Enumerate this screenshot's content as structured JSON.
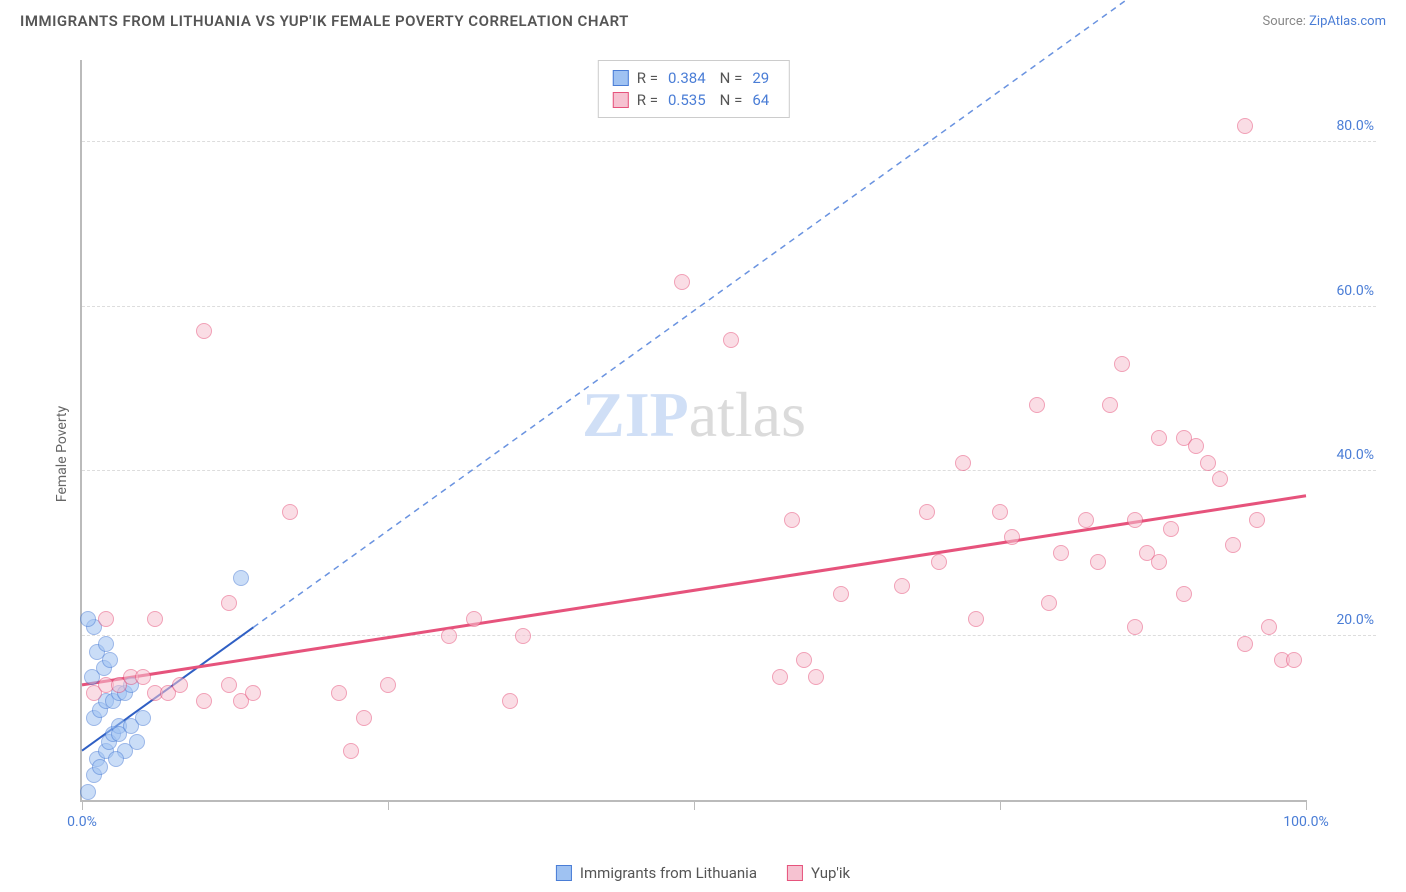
{
  "title": "IMMIGRANTS FROM LITHUANIA VS YUP'IK FEMALE POVERTY CORRELATION CHART",
  "source_prefix": "Source: ",
  "source_name": "ZipAtlas.com",
  "y_axis_label": "Female Poverty",
  "watermark": {
    "z": "Z",
    "i": "I",
    "p": "P",
    "rest": "atlas"
  },
  "chart": {
    "type": "scatter",
    "xlim": [
      0,
      100
    ],
    "ylim": [
      0,
      90
    ],
    "y_ticks": [
      20,
      40,
      60,
      80
    ],
    "y_tick_labels": [
      "20.0%",
      "40.0%",
      "60.0%",
      "80.0%"
    ],
    "x_ticks": [
      0,
      25,
      50,
      75,
      100
    ],
    "x_tick_labels_shown": {
      "0": "0.0%",
      "100": "100.0%"
    },
    "background_color": "#ffffff",
    "grid_color": "#dddddd",
    "axis_color": "#bbbbbb",
    "tick_label_color": "#4a7dd6",
    "point_radius": 8,
    "point_opacity": 0.55,
    "series": [
      {
        "name": "Immigrants from Lithuania",
        "color_fill": "#9fc2f2",
        "color_stroke": "#4a7dd6",
        "R": "0.384",
        "N": "29",
        "trend": {
          "x1": 0,
          "y1": 6,
          "x2": 14,
          "y2": 21,
          "extend_x2": 100,
          "extend_y2": 113,
          "solid_color": "#2f5fc4",
          "dash_color": "#6a93e0",
          "width": 2
        },
        "points": [
          [
            0.5,
            1
          ],
          [
            1,
            3
          ],
          [
            1.2,
            5
          ],
          [
            1.5,
            4
          ],
          [
            2,
            6
          ],
          [
            2.2,
            7
          ],
          [
            2.5,
            8
          ],
          [
            3,
            9
          ],
          [
            1,
            10
          ],
          [
            1.5,
            11
          ],
          [
            2,
            12
          ],
          [
            2.5,
            12
          ],
          [
            3,
            13
          ],
          [
            3.5,
            13
          ],
          [
            4,
            14
          ],
          [
            0.8,
            15
          ],
          [
            1.8,
            16
          ],
          [
            2.3,
            17
          ],
          [
            1.2,
            18
          ],
          [
            2,
            19
          ],
          [
            1,
            21
          ],
          [
            0.5,
            22
          ],
          [
            3,
            8
          ],
          [
            4,
            9
          ],
          [
            5,
            10
          ],
          [
            4.5,
            7
          ],
          [
            3.5,
            6
          ],
          [
            2.8,
            5
          ],
          [
            13,
            27
          ]
        ]
      },
      {
        "name": "Yup'ik",
        "color_fill": "#f6c2d1",
        "color_stroke": "#e6537c",
        "R": "0.535",
        "N": "64",
        "trend": {
          "x1": 0,
          "y1": 14,
          "x2": 100,
          "y2": 37,
          "solid_color": "#e6537c",
          "width": 3
        },
        "points": [
          [
            1,
            13
          ],
          [
            2,
            14
          ],
          [
            3,
            14
          ],
          [
            4,
            15
          ],
          [
            5,
            15
          ],
          [
            6,
            13
          ],
          [
            7,
            13
          ],
          [
            8,
            14
          ],
          [
            2,
            22
          ],
          [
            6,
            22
          ],
          [
            10,
            12
          ],
          [
            12,
            14
          ],
          [
            13,
            12
          ],
          [
            14,
            13
          ],
          [
            12,
            24
          ],
          [
            17,
            35
          ],
          [
            21,
            13
          ],
          [
            22,
            6
          ],
          [
            23,
            10
          ],
          [
            25,
            14
          ],
          [
            10,
            57
          ],
          [
            30,
            20
          ],
          [
            32,
            22
          ],
          [
            35,
            12
          ],
          [
            36,
            20
          ],
          [
            49,
            63
          ],
          [
            53,
            56
          ],
          [
            57,
            15
          ],
          [
            58,
            34
          ],
          [
            59,
            17
          ],
          [
            60,
            15
          ],
          [
            62,
            25
          ],
          [
            67,
            26
          ],
          [
            69,
            35
          ],
          [
            70,
            29
          ],
          [
            72,
            41
          ],
          [
            73,
            22
          ],
          [
            75,
            35
          ],
          [
            76,
            32
          ],
          [
            78,
            48
          ],
          [
            79,
            24
          ],
          [
            82,
            34
          ],
          [
            83,
            29
          ],
          [
            84,
            48
          ],
          [
            85,
            53
          ],
          [
            86,
            21
          ],
          [
            87,
            30
          ],
          [
            88,
            44
          ],
          [
            89,
            33
          ],
          [
            90,
            44
          ],
          [
            91,
            43
          ],
          [
            92,
            41
          ],
          [
            93,
            39
          ],
          [
            94,
            31
          ],
          [
            95,
            19
          ],
          [
            96,
            34
          ],
          [
            97,
            21
          ],
          [
            98,
            17
          ],
          [
            99,
            17
          ],
          [
            95,
            82
          ],
          [
            90,
            25
          ],
          [
            88,
            29
          ],
          [
            86,
            34
          ],
          [
            80,
            30
          ]
        ]
      }
    ]
  },
  "legend_top": {
    "R_label": "R =",
    "N_label": "N ="
  },
  "legend_bottom": [
    {
      "label": "Immigrants from Lithuania",
      "fill": "#9fc2f2",
      "stroke": "#4a7dd6"
    },
    {
      "label": "Yup'ik",
      "fill": "#f6c2d1",
      "stroke": "#e6537c"
    }
  ]
}
